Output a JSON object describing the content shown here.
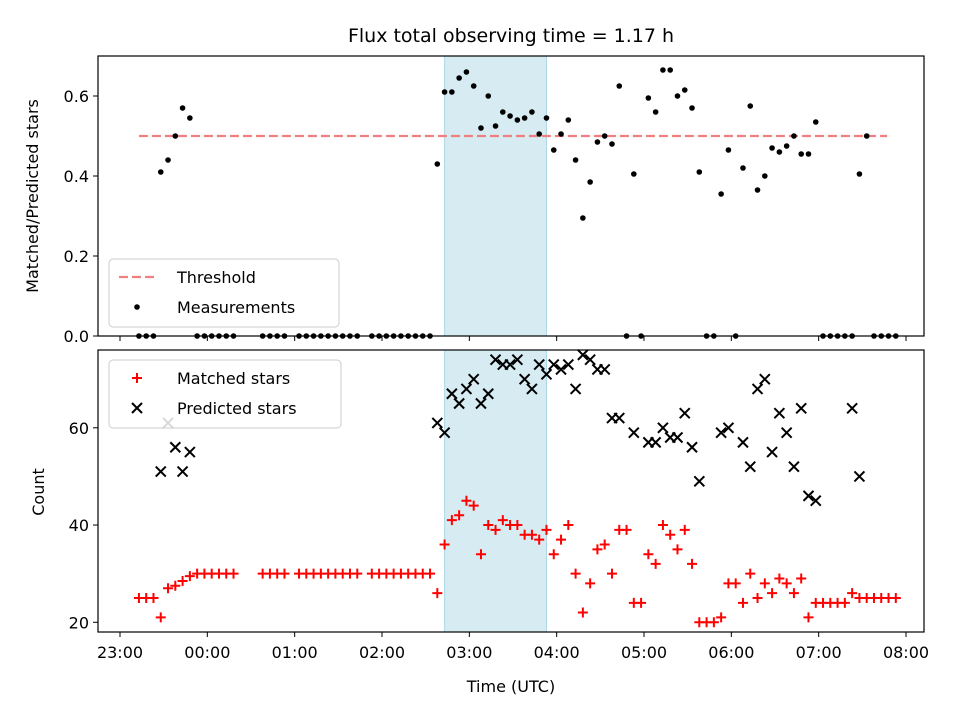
{
  "chart_data": [
    {
      "type": "scatter",
      "title": "Flux total observing time = 1.17 h",
      "xlabel": "",
      "ylabel": "Matched/Predicted stars",
      "x_axis": "time (UTC)",
      "xlim": [
        "23:00",
        "08:00"
      ],
      "ylim": [
        0,
        0.7
      ],
      "yticks": [
        "0.0",
        "0.2",
        "0.4",
        "0.6"
      ],
      "grid": false,
      "legend_position": "lower-left",
      "highlight_span": {
        "start": "02:43",
        "end": "03:53",
        "color": "#add8e6"
      },
      "series": [
        {
          "name": "Threshold",
          "kind": "line",
          "style": "dashed",
          "color": "#f08080",
          "points": [
            [
              "23:13",
              0.5
            ],
            [
              "07:47",
              0.5
            ]
          ]
        },
        {
          "name": "Measurements",
          "kind": "scatter",
          "marker": "dot",
          "color": "#000000",
          "points": [
            [
              "23:13",
              0
            ],
            [
              "23:18",
              0
            ],
            [
              "23:23",
              0
            ],
            [
              "23:28",
              0.41
            ],
            [
              "23:33",
              0.44
            ],
            [
              "23:38",
              0.5
            ],
            [
              "23:43",
              0.57
            ],
            [
              "23:48",
              0.545
            ],
            [
              "23:53",
              0
            ],
            [
              "23:58",
              0
            ],
            [
              "00:03",
              0
            ],
            [
              "00:08",
              0
            ],
            [
              "00:13",
              0
            ],
            [
              "00:18",
              0
            ],
            [
              "00:38",
              0
            ],
            [
              "00:43",
              0
            ],
            [
              "00:48",
              0
            ],
            [
              "00:53",
              0
            ],
            [
              "01:03",
              0
            ],
            [
              "01:08",
              0
            ],
            [
              "01:13",
              0
            ],
            [
              "01:18",
              0
            ],
            [
              "01:23",
              0
            ],
            [
              "01:28",
              0
            ],
            [
              "01:33",
              0
            ],
            [
              "01:38",
              0
            ],
            [
              "01:43",
              0
            ],
            [
              "01:53",
              0
            ],
            [
              "01:58",
              0
            ],
            [
              "02:03",
              0
            ],
            [
              "02:08",
              0
            ],
            [
              "02:13",
              0
            ],
            [
              "02:18",
              0
            ],
            [
              "02:23",
              0
            ],
            [
              "02:28",
              0
            ],
            [
              "02:33",
              0
            ],
            [
              "02:38",
              0.43
            ],
            [
              "02:43",
              0.61
            ],
            [
              "02:48",
              0.61
            ],
            [
              "02:53",
              0.645
            ],
            [
              "02:58",
              0.66
            ],
            [
              "03:03",
              0.625
            ],
            [
              "03:08",
              0.52
            ],
            [
              "03:13",
              0.6
            ],
            [
              "03:18",
              0.525
            ],
            [
              "03:23",
              0.56
            ],
            [
              "03:28",
              0.55
            ],
            [
              "03:33",
              0.54
            ],
            [
              "03:38",
              0.545
            ],
            [
              "03:43",
              0.56
            ],
            [
              "03:48",
              0.505
            ],
            [
              "03:53",
              0.545
            ],
            [
              "03:58",
              0.465
            ],
            [
              "04:03",
              0.505
            ],
            [
              "04:08",
              0.54
            ],
            [
              "04:13",
              0.44
            ],
            [
              "04:18",
              0.295
            ],
            [
              "04:23",
              0.385
            ],
            [
              "04:28",
              0.485
            ],
            [
              "04:33",
              0.5
            ],
            [
              "04:38",
              0.48
            ],
            [
              "04:43",
              0.625
            ],
            [
              "04:48",
              0
            ],
            [
              "04:53",
              0.405
            ],
            [
              "04:58",
              0
            ],
            [
              "05:03",
              0.595
            ],
            [
              "05:08",
              0.56
            ],
            [
              "05:13",
              0.665
            ],
            [
              "05:18",
              0.665
            ],
            [
              "05:23",
              0.6
            ],
            [
              "05:28",
              0.615
            ],
            [
              "05:33",
              0.57
            ],
            [
              "05:38",
              0.41
            ],
            [
              "05:43",
              0
            ],
            [
              "05:48",
              0
            ],
            [
              "05:53",
              0.355
            ],
            [
              "05:58",
              0.465
            ],
            [
              "06:03",
              0
            ],
            [
              "06:08",
              0.42
            ],
            [
              "06:13",
              0.575
            ],
            [
              "06:18",
              0.365
            ],
            [
              "06:23",
              0.4
            ],
            [
              "06:28",
              0.47
            ],
            [
              "06:33",
              0.46
            ],
            [
              "06:38",
              0.475
            ],
            [
              "06:43",
              0.5
            ],
            [
              "06:48",
              0.455
            ],
            [
              "06:53",
              0.455
            ],
            [
              "06:58",
              0.535
            ],
            [
              "07:03",
              0
            ],
            [
              "07:08",
              0
            ],
            [
              "07:13",
              0
            ],
            [
              "07:18",
              0
            ],
            [
              "07:23",
              0
            ],
            [
              "07:28",
              0.405
            ],
            [
              "07:33",
              0.5
            ],
            [
              "07:38",
              0
            ],
            [
              "07:43",
              0
            ],
            [
              "07:48",
              0
            ],
            [
              "07:53",
              0
            ]
          ]
        }
      ]
    },
    {
      "type": "scatter",
      "title": "",
      "xlabel": "Time (UTC)",
      "ylabel": "Count",
      "x_axis": "time (UTC)",
      "xlim": [
        "23:00",
        "08:00"
      ],
      "ylim": [
        18,
        76
      ],
      "xticks": [
        "23:00",
        "00:00",
        "01:00",
        "02:00",
        "03:00",
        "04:00",
        "05:00",
        "06:00",
        "07:00",
        "08:00"
      ],
      "yticks": [
        "20",
        "40",
        "60"
      ],
      "grid": false,
      "legend_position": "upper-left",
      "highlight_span": {
        "start": "02:43",
        "end": "03:53",
        "color": "#add8e6"
      },
      "series": [
        {
          "name": "Matched stars",
          "kind": "scatter",
          "marker": "plus",
          "color": "#ff0000",
          "points": [
            [
              "23:13",
              25
            ],
            [
              "23:18",
              25
            ],
            [
              "23:23",
              25
            ],
            [
              "23:28",
              21
            ],
            [
              "23:33",
              27
            ],
            [
              "23:38",
              27.5
            ],
            [
              "23:43",
              28.5
            ],
            [
              "23:48",
              29.5
            ],
            [
              "23:53",
              30
            ],
            [
              "23:58",
              30
            ],
            [
              "00:03",
              30
            ],
            [
              "00:08",
              30
            ],
            [
              "00:13",
              30
            ],
            [
              "00:18",
              30
            ],
            [
              "00:38",
              30
            ],
            [
              "00:43",
              30
            ],
            [
              "00:48",
              30
            ],
            [
              "00:53",
              30
            ],
            [
              "01:03",
              30
            ],
            [
              "01:08",
              30
            ],
            [
              "01:13",
              30
            ],
            [
              "01:18",
              30
            ],
            [
              "01:23",
              30
            ],
            [
              "01:28",
              30
            ],
            [
              "01:33",
              30
            ],
            [
              "01:38",
              30
            ],
            [
              "01:43",
              30
            ],
            [
              "01:53",
              30
            ],
            [
              "01:58",
              30
            ],
            [
              "02:03",
              30
            ],
            [
              "02:08",
              30
            ],
            [
              "02:13",
              30
            ],
            [
              "02:18",
              30
            ],
            [
              "02:23",
              30
            ],
            [
              "02:28",
              30
            ],
            [
              "02:33",
              30
            ],
            [
              "02:38",
              26
            ],
            [
              "02:43",
              36
            ],
            [
              "02:48",
              41
            ],
            [
              "02:53",
              42
            ],
            [
              "02:58",
              45
            ],
            [
              "03:03",
              44
            ],
            [
              "03:08",
              34
            ],
            [
              "03:13",
              40
            ],
            [
              "03:18",
              39
            ],
            [
              "03:23",
              41
            ],
            [
              "03:28",
              40
            ],
            [
              "03:33",
              40
            ],
            [
              "03:38",
              38
            ],
            [
              "03:43",
              38
            ],
            [
              "03:48",
              37
            ],
            [
              "03:53",
              39
            ],
            [
              "03:58",
              34
            ],
            [
              "04:03",
              37
            ],
            [
              "04:08",
              40
            ],
            [
              "04:13",
              30
            ],
            [
              "04:18",
              22
            ],
            [
              "04:23",
              28
            ],
            [
              "04:28",
              35
            ],
            [
              "04:33",
              36
            ],
            [
              "04:38",
              30
            ],
            [
              "04:43",
              39
            ],
            [
              "04:48",
              39
            ],
            [
              "04:53",
              24
            ],
            [
              "04:58",
              24
            ],
            [
              "05:03",
              34
            ],
            [
              "05:08",
              32
            ],
            [
              "05:13",
              40
            ],
            [
              "05:18",
              38
            ],
            [
              "05:23",
              35
            ],
            [
              "05:28",
              39
            ],
            [
              "05:33",
              32
            ],
            [
              "05:38",
              20
            ],
            [
              "05:43",
              20
            ],
            [
              "05:48",
              20
            ],
            [
              "05:53",
              21
            ],
            [
              "05:58",
              28
            ],
            [
              "06:03",
              28
            ],
            [
              "06:08",
              24
            ],
            [
              "06:13",
              30
            ],
            [
              "06:18",
              25
            ],
            [
              "06:23",
              28
            ],
            [
              "06:28",
              26
            ],
            [
              "06:33",
              29
            ],
            [
              "06:38",
              28
            ],
            [
              "06:43",
              26
            ],
            [
              "06:48",
              29
            ],
            [
              "06:53",
              21
            ],
            [
              "06:58",
              24
            ],
            [
              "07:03",
              24
            ],
            [
              "07:08",
              24
            ],
            [
              "07:13",
              24
            ],
            [
              "07:18",
              24
            ],
            [
              "07:23",
              26
            ],
            [
              "07:28",
              25
            ],
            [
              "07:33",
              25
            ],
            [
              "07:38",
              25
            ],
            [
              "07:43",
              25
            ],
            [
              "07:48",
              25
            ],
            [
              "07:53",
              25
            ]
          ]
        },
        {
          "name": "Predicted stars",
          "kind": "scatter",
          "marker": "x",
          "color": "#000000",
          "points": [
            [
              "23:28",
              51
            ],
            [
              "23:33",
              61
            ],
            [
              "23:38",
              56
            ],
            [
              "23:43",
              51
            ],
            [
              "23:48",
              55
            ],
            [
              "02:38",
              61
            ],
            [
              "02:43",
              59
            ],
            [
              "02:48",
              67
            ],
            [
              "02:53",
              65
            ],
            [
              "02:58",
              68
            ],
            [
              "03:03",
              70
            ],
            [
              "03:08",
              65
            ],
            [
              "03:13",
              67
            ],
            [
              "03:18",
              74
            ],
            [
              "03:23",
              73
            ],
            [
              "03:28",
              73
            ],
            [
              "03:33",
              74
            ],
            [
              "03:38",
              70
            ],
            [
              "03:43",
              68
            ],
            [
              "03:48",
              73
            ],
            [
              "03:53",
              71
            ],
            [
              "03:58",
              73
            ],
            [
              "04:03",
              72
            ],
            [
              "04:08",
              73
            ],
            [
              "04:13",
              68
            ],
            [
              "04:18",
              75
            ],
            [
              "04:23",
              74
            ],
            [
              "04:28",
              72
            ],
            [
              "04:33",
              72
            ],
            [
              "04:38",
              62
            ],
            [
              "04:43",
              62
            ],
            [
              "04:53",
              59
            ],
            [
              "05:03",
              57
            ],
            [
              "05:08",
              57
            ],
            [
              "05:13",
              60
            ],
            [
              "05:18",
              58
            ],
            [
              "05:23",
              58
            ],
            [
              "05:28",
              63
            ],
            [
              "05:33",
              56
            ],
            [
              "05:38",
              49
            ],
            [
              "05:53",
              59
            ],
            [
              "05:58",
              60
            ],
            [
              "06:08",
              57
            ],
            [
              "06:13",
              52
            ],
            [
              "06:18",
              68
            ],
            [
              "06:23",
              70
            ],
            [
              "06:28",
              55
            ],
            [
              "06:33",
              63
            ],
            [
              "06:38",
              59
            ],
            [
              "06:43",
              52
            ],
            [
              "06:48",
              64
            ],
            [
              "06:53",
              46
            ],
            [
              "06:58",
              45
            ],
            [
              "07:23",
              64
            ],
            [
              "07:28",
              50
            ]
          ]
        }
      ]
    }
  ]
}
